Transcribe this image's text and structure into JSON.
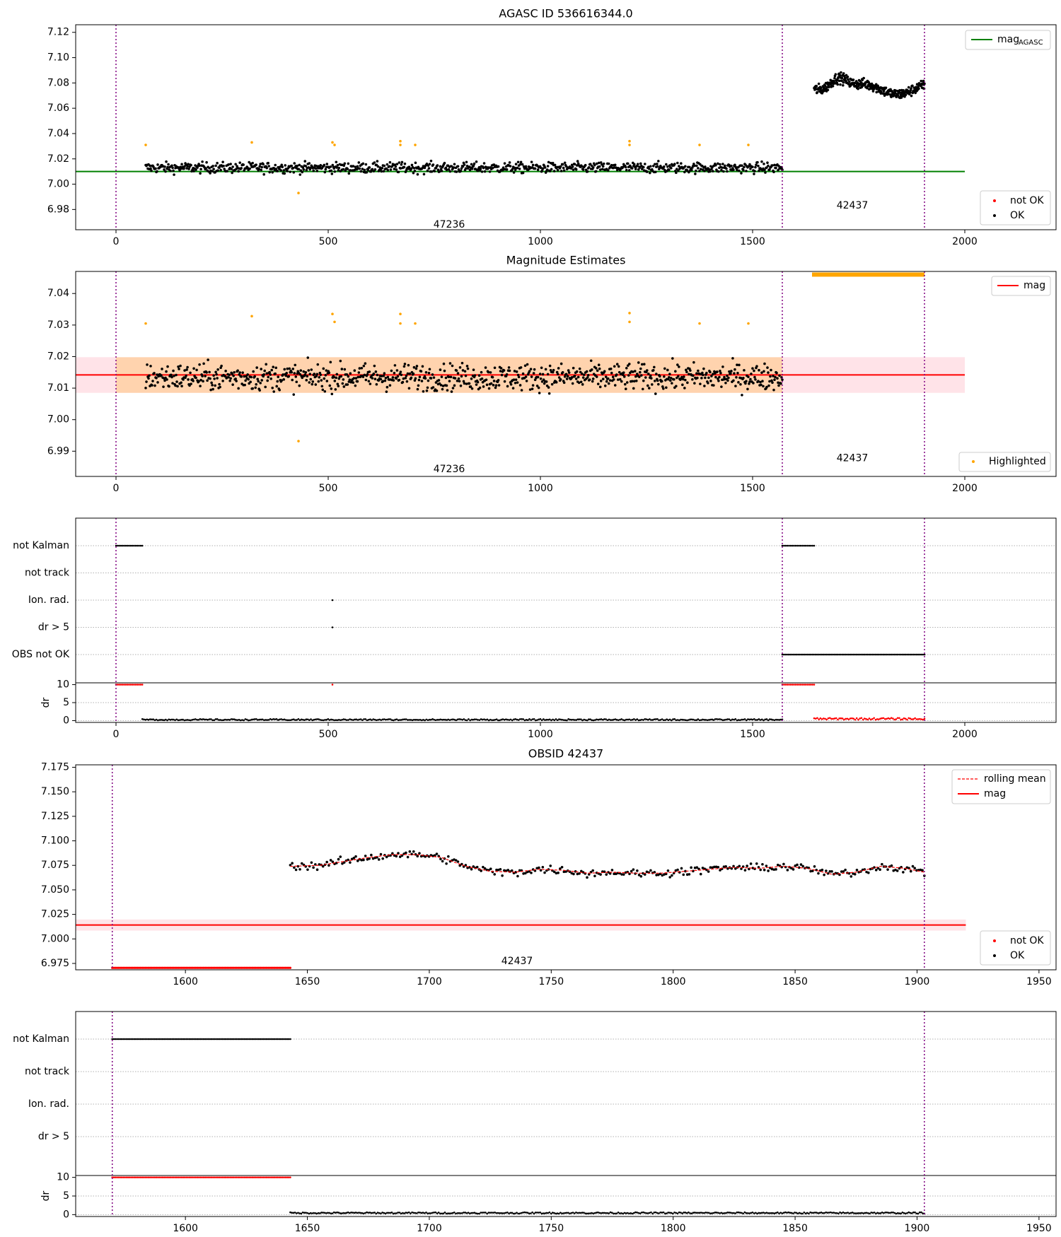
{
  "chart_data": [
    {
      "id": "p1",
      "type": "scatter",
      "title": "AGASC ID 536616344.0",
      "xlim": [
        -95,
        2215
      ],
      "ylim": [
        6.964,
        7.126
      ],
      "xticks": [
        0,
        500,
        1000,
        1500,
        2000
      ],
      "yticks": [
        6.98,
        7.0,
        7.02,
        7.04,
        7.06,
        7.08,
        7.1,
        7.12
      ],
      "ytick_labels": [
        "6.98",
        "7.00",
        "7.02",
        "7.04",
        "7.06",
        "7.08",
        "7.10",
        "7.12"
      ],
      "vlines": [
        0,
        1570,
        1905
      ],
      "hline": {
        "y": 7.01,
        "color": "#008000",
        "x": [
          -95,
          2000
        ]
      },
      "legend_top": {
        "label": "mag",
        "sub": "AGASC",
        "color": "#008000"
      },
      "legend_bottom": [
        {
          "label": "not OK",
          "color": "#ff0000"
        },
        {
          "label": "OK",
          "color": "#000000"
        }
      ],
      "annotations": [
        {
          "text": "47236",
          "x": 785,
          "y": 6.968
        },
        {
          "text": "42437",
          "x": 1735,
          "y": 6.983
        }
      ],
      "series": [
        {
          "label": "OK",
          "color": "#000000",
          "x_range": [
            70,
            1570
          ],
          "n": 900,
          "center": 7.013,
          "spread": 0.006
        },
        {
          "label": "OK",
          "color": "#000000",
          "x_range": [
            1645,
            1905
          ],
          "n": 330,
          "center": 7.075,
          "spread": 0.006
        }
      ],
      "highlighted": {
        "color": "#ffa500",
        "x": [
          70,
          320,
          430,
          510,
          515,
          670,
          670,
          705,
          1210,
          1210,
          1375,
          1490
        ],
        "y": [
          7.031,
          7.033,
          6.993,
          7.033,
          7.031,
          7.034,
          7.031,
          7.031,
          7.034,
          7.031,
          7.031,
          7.031
        ]
      }
    },
    {
      "id": "p2",
      "type": "scatter",
      "title": "Magnitude Estimates",
      "xlim": [
        -95,
        2215
      ],
      "ylim": [
        6.982,
        7.047
      ],
      "xticks": [
        0,
        500,
        1000,
        1500,
        2000
      ],
      "yticks": [
        6.99,
        7.0,
        7.01,
        7.02,
        7.03,
        7.04
      ],
      "ytick_labels": [
        "6.99",
        "7.00",
        "7.01",
        "7.02",
        "7.03",
        "7.04"
      ],
      "vlines": [
        0,
        1570,
        1905
      ],
      "hline": {
        "y": 7.0142,
        "color": "#ff0000",
        "x": [
          -95,
          2000
        ]
      },
      "band_pink": {
        "y": [
          7.0085,
          7.0198
        ],
        "x": [
          -95,
          2000
        ]
      },
      "band_orange": {
        "y": [
          7.0085,
          7.0198
        ],
        "x": [
          0,
          1570
        ]
      },
      "legend_top": {
        "label": "mag",
        "color": "#ff0000"
      },
      "legend_bottom": [
        {
          "label": "Highlighted",
          "color": "#ffa500"
        }
      ],
      "annotations": [
        {
          "text": "47236",
          "x": 785,
          "y": 6.9842
        },
        {
          "text": "42437",
          "x": 1735,
          "y": 6.9877
        }
      ],
      "series": [
        {
          "label": "OK",
          "color": "#000000",
          "x_range": [
            70,
            1570
          ],
          "n": 900,
          "center": 7.0135,
          "spread": 0.0055
        }
      ],
      "highlighted": {
        "color": "#ffa500",
        "x": [
          70,
          320,
          430,
          510,
          515,
          670,
          670,
          705,
          1210,
          1210,
          1375,
          1490
        ],
        "y": [
          7.0305,
          7.0328,
          6.9932,
          7.0335,
          7.031,
          7.0335,
          7.0305,
          7.0305,
          7.0338,
          7.031,
          7.0305,
          7.0305
        ],
        "edge_band": {
          "x": [
            1640,
            1905
          ],
          "y": 7.046
        }
      }
    },
    {
      "id": "p3",
      "type": "scatter",
      "title": "",
      "xlim": [
        -95,
        2215
      ],
      "xticks": [
        0,
        500,
        1000,
        1500,
        2000
      ],
      "vlines": [
        0,
        1570,
        1905
      ],
      "flag_rows": [
        "not Kalman",
        "not track",
        "Ion. rad.",
        "dr > 5",
        "OBS not OK"
      ],
      "flags": [
        {
          "row": "not Kalman",
          "x_range": [
            0,
            62
          ]
        },
        {
          "row": "not Kalman",
          "x_range": [
            1570,
            1645
          ]
        },
        {
          "row": "Ion. rad.",
          "x": [
            510
          ]
        },
        {
          "row": "dr > 5",
          "x": [
            510
          ]
        },
        {
          "row": "OBS not OK",
          "x_range": [
            1570,
            1905
          ]
        }
      ],
      "dr_axis": {
        "label": "dr",
        "ylim": [
          -0.5,
          10.5
        ],
        "yticks": [
          0,
          5,
          10
        ],
        "ytick_labels": [
          "0",
          "5",
          "10"
        ]
      },
      "dr_series": [
        {
          "color": "#ff0000",
          "x_range": [
            0,
            62
          ],
          "y": 10
        },
        {
          "color": "#ff0000",
          "x": [
            510
          ],
          "y": 10
        },
        {
          "color": "#ff0000",
          "x_range": [
            1570,
            1645
          ],
          "y": 10
        },
        {
          "color": "#000000",
          "x_range": [
            62,
            1570
          ],
          "y": 0.25
        },
        {
          "color": "#ff0000",
          "x_range": [
            1645,
            1905
          ],
          "y": 0.5
        }
      ]
    },
    {
      "id": "p4",
      "type": "scatter",
      "title": "OBSID 42437",
      "xlim": [
        1555,
        1957
      ],
      "ylim": [
        6.9685,
        7.1775
      ],
      "xticks": [
        1600,
        1650,
        1700,
        1750,
        1800,
        1850,
        1900,
        1950
      ],
      "yticks": [
        6.975,
        7.0,
        7.025,
        7.05,
        7.075,
        7.1,
        7.125,
        7.15,
        7.175
      ],
      "ytick_labels": [
        "6.975",
        "7.000",
        "7.025",
        "7.050",
        "7.075",
        "7.100",
        "7.125",
        "7.150",
        "7.175"
      ],
      "vlines": [
        1570,
        1903
      ],
      "hline": {
        "y": 7.0142,
        "color": "#ff0000",
        "x": [
          1555,
          1920
        ]
      },
      "band_pink": {
        "y": [
          7.0085,
          7.0198
        ],
        "x": [
          1555,
          1920
        ]
      },
      "legend_top": [
        {
          "label": "rolling mean",
          "color": "#ff0000",
          "dashed": true
        },
        {
          "label": "mag",
          "color": "#ff0000"
        }
      ],
      "legend_bottom": [
        {
          "label": "not OK",
          "color": "#ff0000"
        },
        {
          "label": "OK",
          "color": "#000000"
        }
      ],
      "annotations": [
        {
          "text": "42437",
          "x": 1736,
          "y": 6.977
        }
      ],
      "series": [
        {
          "label": "not OK",
          "color": "#ff0000",
          "x_range": [
            1570,
            1643
          ],
          "y": 6.9705
        },
        {
          "label": "OK",
          "color": "#000000",
          "x_range": [
            1643,
            1903
          ],
          "n": 330
        }
      ],
      "rolling_mean": {
        "color": "#ff0000",
        "x": [
          1643,
          1655,
          1665,
          1675,
          1685,
          1695,
          1705,
          1715,
          1725,
          1735,
          1745,
          1755,
          1765,
          1775,
          1785,
          1795,
          1805,
          1815,
          1825,
          1835,
          1845,
          1855,
          1865,
          1875,
          1885,
          1895,
          1903
        ],
        "y": [
          7.074,
          7.075,
          7.079,
          7.083,
          7.086,
          7.086,
          7.083,
          7.074,
          7.069,
          7.068,
          7.071,
          7.07,
          7.067,
          7.068,
          7.067,
          7.067,
          7.069,
          7.071,
          7.073,
          7.072,
          7.074,
          7.072,
          7.066,
          7.068,
          7.074,
          7.072,
          7.068
        ]
      }
    },
    {
      "id": "p5",
      "type": "scatter",
      "title": "",
      "xlim": [
        1555,
        1957
      ],
      "xticks": [
        1600,
        1650,
        1700,
        1750,
        1800,
        1850,
        1900,
        1950
      ],
      "vlines": [
        1570,
        1903
      ],
      "flag_rows": [
        "not Kalman",
        "not track",
        "Ion. rad.",
        "dr > 5"
      ],
      "flags": [
        {
          "row": "not Kalman",
          "x_range": [
            1570,
            1643
          ]
        }
      ],
      "dr_axis": {
        "label": "dr",
        "ylim": [
          -0.5,
          10.5
        ],
        "yticks": [
          0,
          5,
          10
        ],
        "ytick_labels": [
          "0",
          "5",
          "10"
        ]
      },
      "dr_series": [
        {
          "color": "#ff0000",
          "x_range": [
            1570,
            1643
          ],
          "y": 10
        },
        {
          "color": "#000000",
          "x_range": [
            1643,
            1903
          ],
          "y": 0.45
        }
      ]
    }
  ]
}
